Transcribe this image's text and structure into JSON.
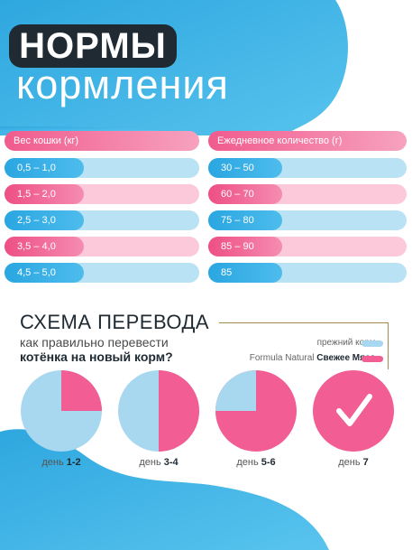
{
  "header": {
    "title_main": "НОРМЫ",
    "title_sub": "кормления"
  },
  "table": {
    "col1_header": "Вес кошки (кг)",
    "col2_header": "Ежедневное количество (г)",
    "rows": [
      {
        "weight": "0,5 – 1,0",
        "amount": "30 – 50"
      },
      {
        "weight": "1,5 – 2,0",
        "amount": "60 – 70"
      },
      {
        "weight": "2,5 – 3,0",
        "amount": "75 – 80"
      },
      {
        "weight": "3,5 – 4,0",
        "amount": "85 – 90"
      },
      {
        "weight": "4,5 – 5,0",
        "amount": "85"
      }
    ]
  },
  "scheme": {
    "title": "СХЕМА ПЕРЕВОДА",
    "subtitle_line1": "как правильно перевести",
    "subtitle_line2": "котёнка на новый корм?",
    "legend_old": "прежний корм –",
    "legend_new_prefix": "Formula Natural",
    "legend_new_bold": "Свежее Мясо",
    "legend_new_suffix": "–",
    "days": [
      {
        "label": "день",
        "value": "1-2",
        "new_share": 0.25
      },
      {
        "label": "день",
        "value": "3-4",
        "new_share": 0.5
      },
      {
        "label": "день",
        "value": "5-6",
        "new_share": 0.75
      },
      {
        "label": "день",
        "value": "7",
        "new_share": 1.0
      }
    ]
  },
  "colors": {
    "old_food": "#a8d8f0",
    "new_food": "#f25d93",
    "accent_gold": "#a48a4f",
    "dark": "#1f2a33"
  },
  "icons": {
    "day7": "checkmark-icon"
  }
}
